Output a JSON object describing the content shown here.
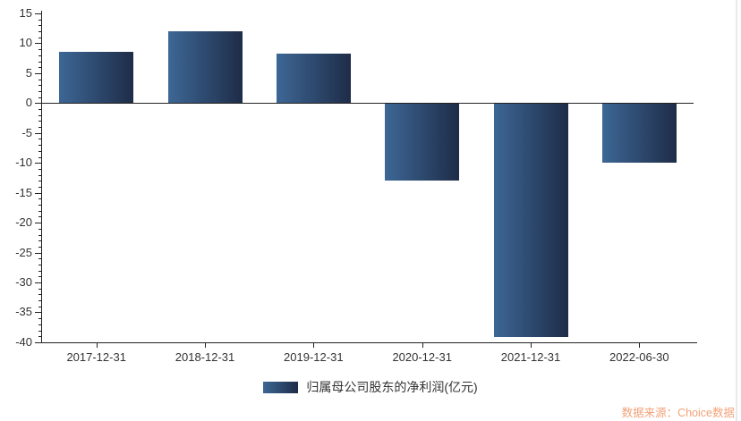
{
  "chart_data": {
    "type": "bar",
    "title": "",
    "xlabel": "",
    "ylabel": "",
    "categories": [
      "2017-12-31",
      "2018-12-31",
      "2019-12-31",
      "2020-12-31",
      "2021-12-31",
      "2022-06-30"
    ],
    "values": [
      8.6,
      12.0,
      8.2,
      -12.8,
      -39.0,
      -9.8
    ],
    "series_name": "归属母公司股东的净利润(亿元)",
    "ylim": [
      -40,
      15
    ],
    "yticks": [
      15,
      10,
      5,
      0,
      -5,
      -10,
      -15,
      -20,
      -25,
      -30,
      -35,
      -40
    ],
    "ytick_step": 5,
    "minor_tick_step": 1,
    "grid": false,
    "legend_position": "bottom-center",
    "zero_baseline": true
  },
  "legend": {
    "label": "归属母公司股东的净利润(亿元)"
  },
  "source": {
    "label": "数据来源：Choice数据",
    "color": "#F2A278"
  },
  "colors": {
    "bar_gradient_left": "#3D6795",
    "bar_gradient_right": "#1E2C48",
    "axis": "#222222",
    "tick_label": "#333333",
    "background": "#FFFFFF"
  }
}
